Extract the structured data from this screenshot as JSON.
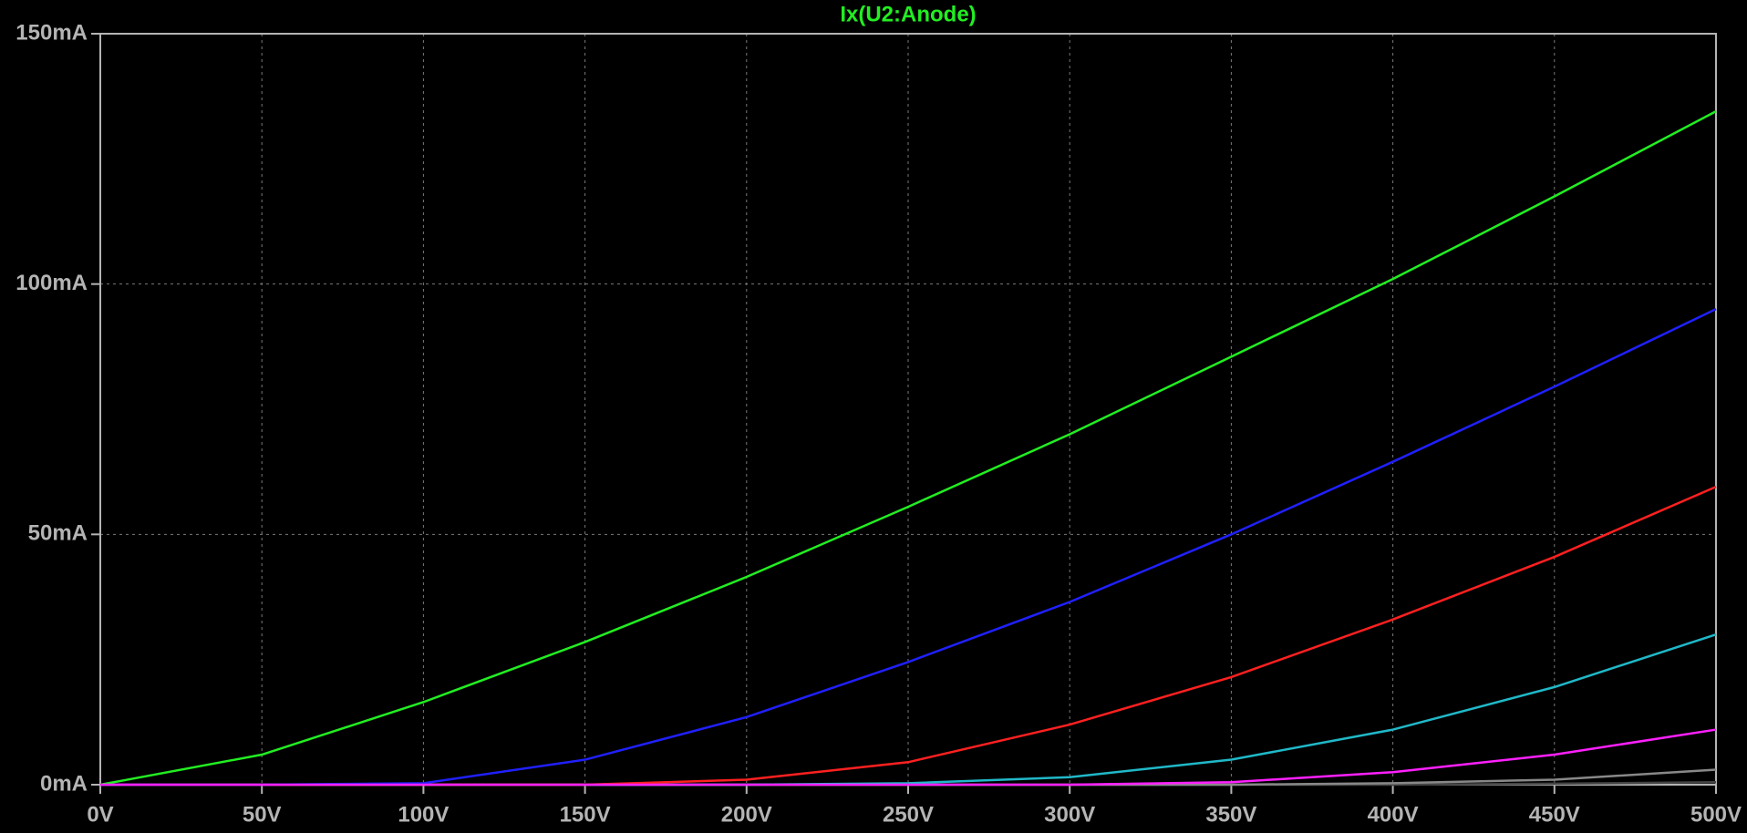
{
  "chart_data": {
    "type": "line",
    "title": "Ix(U2:Anode)",
    "title_color": "#22ee22",
    "x": [
      0,
      50,
      100,
      150,
      200,
      250,
      300,
      350,
      400,
      450,
      500
    ],
    "series": [
      {
        "color": "#444444",
        "values": [
          0,
          0,
          0,
          0,
          0,
          0,
          0,
          0,
          0,
          0.2,
          0.5
        ]
      },
      {
        "color": "#888888",
        "values": [
          0,
          0,
          0,
          0,
          0,
          0,
          0,
          0,
          0.3,
          1,
          3
        ]
      },
      {
        "color": "#20b8c8",
        "values": [
          0,
          0,
          0,
          0,
          0,
          0.3,
          1.5,
          5,
          11,
          19.5,
          30
        ]
      },
      {
        "color": "#ff2020",
        "values": [
          0,
          0,
          0,
          0,
          1,
          4.5,
          12,
          21.5,
          33,
          45.5,
          59.5
        ]
      },
      {
        "color": "#2020ff",
        "values": [
          0,
          0,
          0.3,
          5,
          13.5,
          24.5,
          36.5,
          50,
          64.5,
          79.5,
          95
        ]
      },
      {
        "color": "#22ee22",
        "values": [
          0,
          6,
          16.5,
          28.5,
          41.5,
          55.5,
          70,
          85.5,
          101,
          117.5,
          134.5
        ]
      },
      {
        "color": "#ff20ff",
        "values": [
          0,
          0,
          0,
          0,
          0,
          0,
          0,
          0.5,
          2.5,
          6,
          11
        ]
      }
    ],
    "xlim": [
      0,
      500
    ],
    "xticks": [
      {
        "value": 0,
        "label": "0V"
      },
      {
        "value": 50,
        "label": "50V"
      },
      {
        "value": 100,
        "label": "100V"
      },
      {
        "value": 150,
        "label": "150V"
      },
      {
        "value": 200,
        "label": "200V"
      },
      {
        "value": 250,
        "label": "250V"
      },
      {
        "value": 300,
        "label": "300V"
      },
      {
        "value": 350,
        "label": "350V"
      },
      {
        "value": 400,
        "label": "400V"
      },
      {
        "value": 450,
        "label": "450V"
      },
      {
        "value": 500,
        "label": "500V"
      }
    ],
    "ylim": [
      0,
      150
    ],
    "yticks": [
      {
        "value": 0,
        "label": "0mA"
      },
      {
        "value": 50,
        "label": "50mA"
      },
      {
        "value": 100,
        "label": "100mA"
      },
      {
        "value": 150,
        "label": "150mA"
      }
    ],
    "grid": true
  }
}
